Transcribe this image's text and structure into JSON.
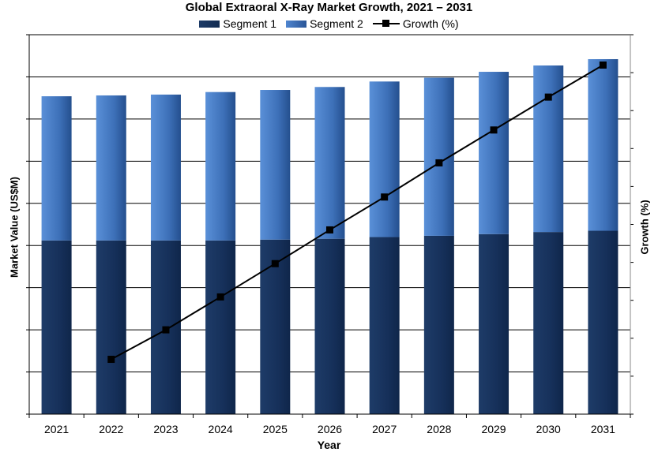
{
  "chart_data": {
    "type": "bar",
    "stacked": true,
    "title": "Global Extraoral X-Ray Market Growth, 2021 – 2031",
    "xlabel": "Year",
    "ylabel": "Market Value (US$M)",
    "y2label": "Growth (%)",
    "categories": [
      "2021",
      "2022",
      "2023",
      "2024",
      "2025",
      "2026",
      "2027",
      "2028",
      "2029",
      "2030",
      "2031"
    ],
    "series": [
      {
        "name": "Segment 1",
        "type": "bar",
        "values": [
          41.2,
          41.2,
          41.2,
          41.2,
          41.4,
          41.6,
          42.0,
          42.3,
          42.7,
          43.2,
          43.5
        ]
      },
      {
        "name": "Segment 2",
        "type": "bar",
        "values": [
          34.2,
          34.4,
          34.6,
          35.2,
          35.5,
          36.0,
          36.9,
          37.5,
          38.5,
          39.5,
          40.7
        ]
      },
      {
        "name": "Growth (%)",
        "type": "line",
        "axis": "right",
        "values": [
          null,
          13.0,
          20.0,
          27.8,
          35.7,
          43.7,
          51.5,
          59.6,
          67.4,
          75.2,
          82.8
        ]
      }
    ],
    "ylim": [
      0,
      90
    ],
    "y2lim": [
      0,
      90
    ],
    "y_tick_labels_visible": false,
    "legend_position": "top",
    "grid": "horizontal"
  }
}
